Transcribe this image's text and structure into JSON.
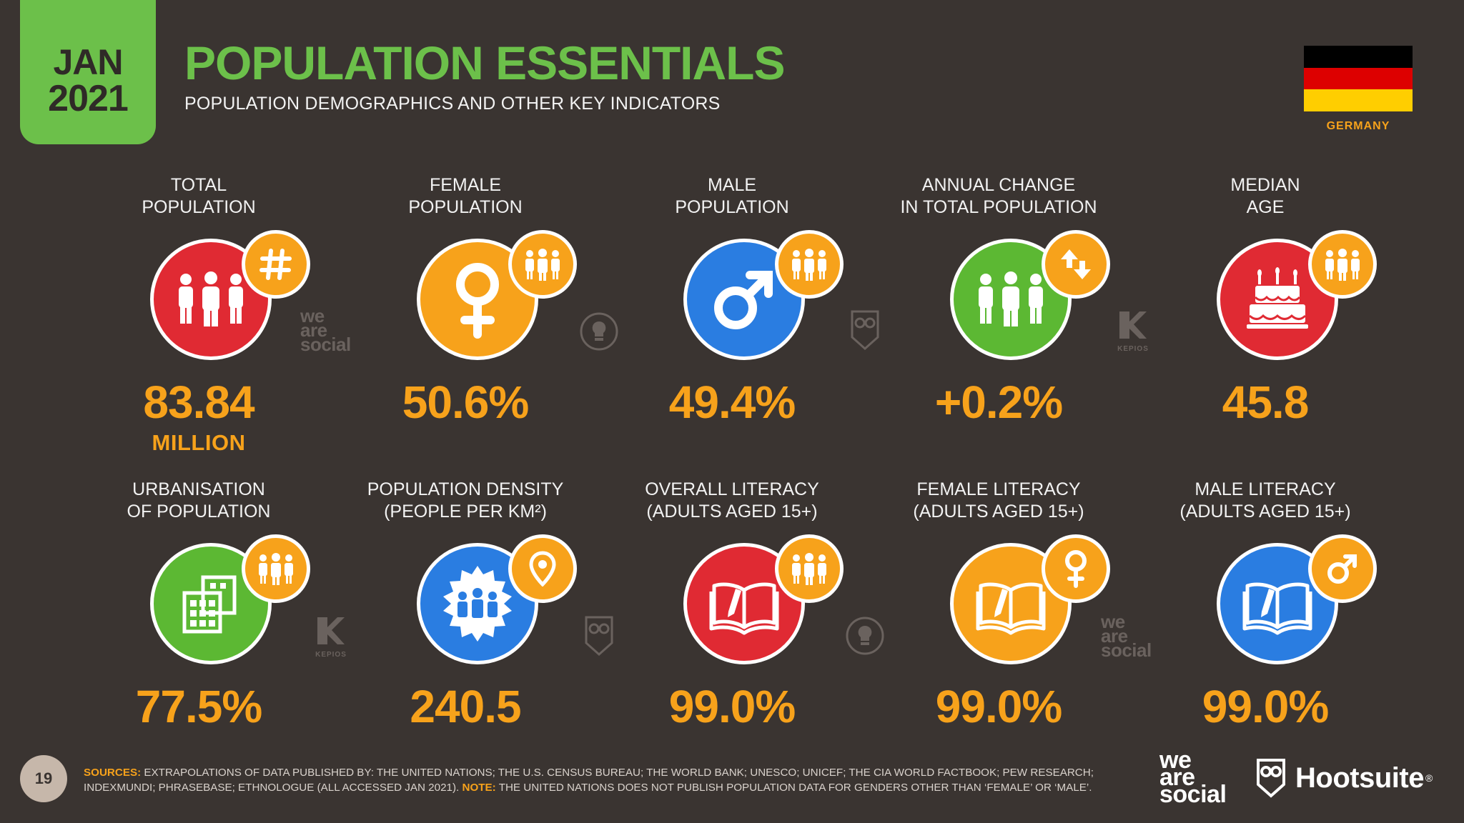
{
  "header": {
    "month": "JAN",
    "year": "2021",
    "title": "POPULATION ESSENTIALS",
    "subtitle": "POPULATION DEMOGRAPHICS AND OTHER KEY INDICATORS",
    "country": "GERMANY",
    "flag_colors": [
      "#000000",
      "#dd0000",
      "#ffce00"
    ]
  },
  "colors": {
    "background": "#3a3431",
    "accent_green": "#6cc04a",
    "accent_orange": "#f7a21b",
    "red": "#e02a33",
    "blue": "#2a7de1",
    "green": "#5cb833"
  },
  "stats": {
    "total_population": {
      "label1": "TOTAL",
      "label2": "POPULATION",
      "value": "83.84",
      "unit": "MILLION",
      "icon": "people-icon",
      "badge_icon": "hash-icon"
    },
    "female_population": {
      "label1": "FEMALE",
      "label2": "POPULATION",
      "value": "50.6%",
      "icon": "female-symbol-icon",
      "badge_icon": "people-icon"
    },
    "male_population": {
      "label1": "MALE",
      "label2": "POPULATION",
      "value": "49.4%",
      "icon": "male-symbol-icon",
      "badge_icon": "people-icon"
    },
    "annual_change": {
      "label1": "ANNUAL CHANGE",
      "label2": "IN TOTAL POPULATION",
      "value": "+0.2%",
      "icon": "people-icon",
      "badge_icon": "up-down-arrows-icon"
    },
    "median_age": {
      "label1": "MEDIAN",
      "label2": "AGE",
      "value": "45.8",
      "icon": "birthday-cake-icon",
      "badge_icon": "people-icon"
    },
    "urbanisation": {
      "label1": "URBANISATION",
      "label2": "OF POPULATION",
      "value": "77.5%",
      "icon": "buildings-icon",
      "badge_icon": "people-icon"
    },
    "population_density": {
      "label1": "POPULATION DENSITY",
      "label2": "(PEOPLE PER KM²)",
      "value": "240.5",
      "icon": "crowd-icon",
      "badge_icon": "map-pin-icon"
    },
    "overall_literacy": {
      "label1": "OVERALL LITERACY",
      "label2": "(ADULTS AGED 15+)",
      "value": "99.0%",
      "icon": "book-pen-icon",
      "badge_icon": "people-icon"
    },
    "female_literacy": {
      "label1": "FEMALE LITERACY",
      "label2": "(ADULTS AGED 15+)",
      "value": "99.0%",
      "icon": "book-pen-icon",
      "badge_icon": "female-symbol-icon"
    },
    "male_literacy": {
      "label1": "MALE LITERACY",
      "label2": "(ADULTS AGED 15+)",
      "value": "99.0%",
      "icon": "book-pen-icon",
      "badge_icon": "male-symbol-icon"
    }
  },
  "watermarks": {
    "was_line1": "we",
    "was_line2": "are",
    "was_line3": "social",
    "kepios": "KEPIOS"
  },
  "footer": {
    "page_number": "19",
    "sources_label": "SOURCES:",
    "sources_text": "EXTRAPOLATIONS OF DATA PUBLISHED BY: THE UNITED NATIONS; THE U.S. CENSUS BUREAU; THE WORLD BANK; UNESCO; UNICEF; THE CIA WORLD FACTBOOK; PEW RESEARCH; INDEXMUNDI; PHRASEBASE; ETHNOLOGUE (ALL ACCESSED JAN 2021).",
    "note_label": "NOTE:",
    "note_text": "THE UNITED NATIONS DOES NOT PUBLISH POPULATION DATA FOR GENDERS OTHER THAN ‘FEMALE’ OR ‘MALE’.",
    "logo_was_line1": "we",
    "logo_was_line2": "are",
    "logo_was_line3": "social",
    "logo_hootsuite": "Hootsuite",
    "logo_hootsuite_mark": "®"
  }
}
